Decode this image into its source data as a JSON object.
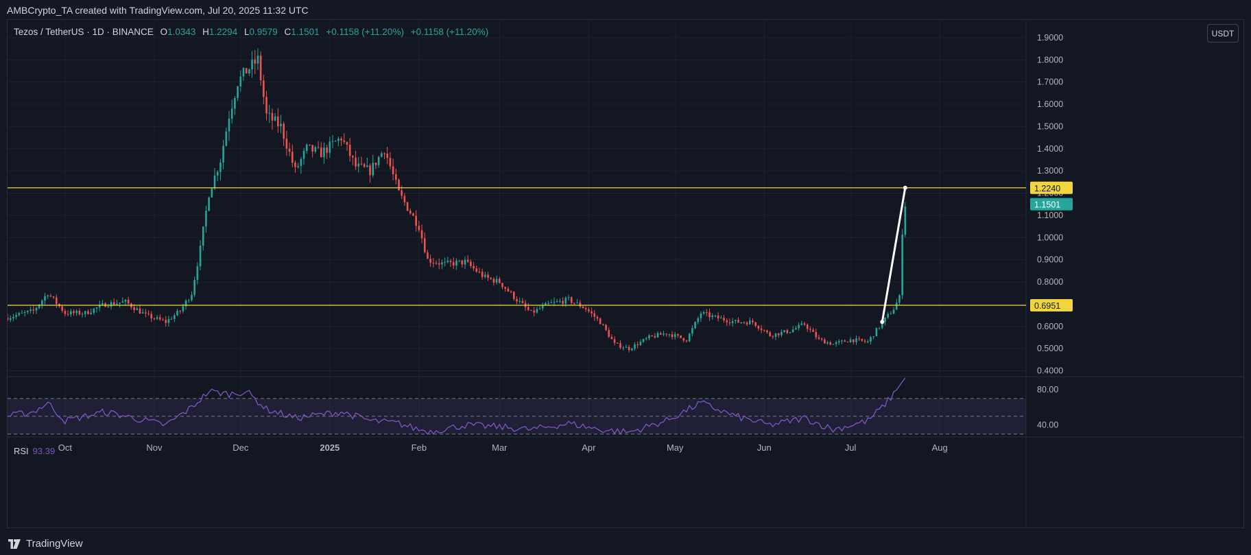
{
  "caption": "AMBCrypto_TA created with TradingView.com, Jul 20, 2025 11:32 UTC",
  "legend": {
    "symbol": "Tezos / TetherUS · 1D · BINANCE",
    "o_label": "O",
    "o_value": "1.0343",
    "h_label": "H",
    "h_value": "1.2294",
    "l_label": "L",
    "l_value": "0.9579",
    "c_label": "C",
    "c_value": "1.1501",
    "change": "+0.1158 (+11.20%)",
    "change2": "+0.1158 (+11.20%)"
  },
  "currency_button": "USDT",
  "rsi": {
    "label": "RSI",
    "value": "93.39"
  },
  "footer": {
    "brand": "TradingView",
    "logo_icon": "tradingview-logo-icon"
  },
  "colors": {
    "up": "#26a69a",
    "down": "#ef5350",
    "level": "#f0d63c",
    "rsi": "#7e57c2",
    "current_price_bg": "#26a69a",
    "level_label_bg": "#f0d63c"
  },
  "chart_data": [
    {
      "type": "candlestick",
      "title": "Tezos / TetherUS · 1D · BINANCE",
      "x_tick_labels": [
        "Oct",
        "Nov",
        "Dec",
        "2025",
        "Feb",
        "Mar",
        "Apr",
        "May",
        "Jun",
        "Jul",
        "Aug"
      ],
      "y_tick_labels": [
        "1.9000",
        "1.8000",
        "1.7000",
        "1.6000",
        "1.5000",
        "1.4000",
        "1.3000",
        "1.2000",
        "1.1000",
        "1.0000",
        "0.9000",
        "0.8000",
        "0.7000",
        "0.6000",
        "0.5000",
        "0.4000"
      ],
      "ylim": [
        0.38,
        1.98
      ],
      "x_range": [
        "2024-09-11",
        "2025-08-31"
      ],
      "horizontal_levels": [
        {
          "label": "1.2240",
          "value": 1.224
        },
        {
          "label": "0.6951",
          "value": 0.6951
        }
      ],
      "current_price": {
        "label": "1.1501",
        "value": 1.1501
      },
      "trendline": {
        "start": [
          "2025-07-12",
          0.62
        ],
        "end": [
          "2025-07-20",
          1.224
        ]
      },
      "price_path": [
        [
          "2024-09-11",
          0.64
        ],
        [
          "2024-09-20",
          0.67
        ],
        [
          "2024-09-25",
          0.75
        ],
        [
          "2024-10-01",
          0.66
        ],
        [
          "2024-10-08",
          0.66
        ],
        [
          "2024-10-15",
          0.7
        ],
        [
          "2024-10-22",
          0.71
        ],
        [
          "2024-10-29",
          0.65
        ],
        [
          "2024-11-05",
          0.62
        ],
        [
          "2024-11-10",
          0.67
        ],
        [
          "2024-11-14",
          0.75
        ],
        [
          "2024-11-17",
          0.95
        ],
        [
          "2024-11-20",
          1.2
        ],
        [
          "2024-11-24",
          1.35
        ],
        [
          "2024-11-27",
          1.55
        ],
        [
          "2024-11-30",
          1.7
        ],
        [
          "2024-12-03",
          1.75
        ],
        [
          "2024-12-07",
          1.8
        ],
        [
          "2024-12-10",
          1.55
        ],
        [
          "2024-12-15",
          1.5
        ],
        [
          "2024-12-20",
          1.3
        ],
        [
          "2024-12-24",
          1.4
        ],
        [
          "2024-12-29",
          1.38
        ],
        [
          "2025-01-05",
          1.45
        ],
        [
          "2025-01-10",
          1.32
        ],
        [
          "2025-01-15",
          1.3
        ],
        [
          "2025-01-20",
          1.4
        ],
        [
          "2025-01-25",
          1.2
        ],
        [
          "2025-02-01",
          1.05
        ],
        [
          "2025-02-04",
          0.9
        ],
        [
          "2025-02-10",
          0.88
        ],
        [
          "2025-02-17",
          0.89
        ],
        [
          "2025-02-24",
          0.82
        ],
        [
          "2025-03-01",
          0.8
        ],
        [
          "2025-03-07",
          0.72
        ],
        [
          "2025-03-12",
          0.66
        ],
        [
          "2025-03-18",
          0.7
        ],
        [
          "2025-03-25",
          0.72
        ],
        [
          "2025-03-31",
          0.68
        ],
        [
          "2025-04-05",
          0.62
        ],
        [
          "2025-04-10",
          0.52
        ],
        [
          "2025-04-15",
          0.5
        ],
        [
          "2025-04-22",
          0.55
        ],
        [
          "2025-04-28",
          0.57
        ],
        [
          "2025-05-05",
          0.54
        ],
        [
          "2025-05-10",
          0.66
        ],
        [
          "2025-05-15",
          0.64
        ],
        [
          "2025-05-22",
          0.62
        ],
        [
          "2025-05-28",
          0.62
        ],
        [
          "2025-06-03",
          0.56
        ],
        [
          "2025-06-10",
          0.58
        ],
        [
          "2025-06-15",
          0.61
        ],
        [
          "2025-06-20",
          0.54
        ],
        [
          "2025-06-25",
          0.52
        ],
        [
          "2025-07-01",
          0.54
        ],
        [
          "2025-07-07",
          0.53
        ],
        [
          "2025-07-11",
          0.6
        ],
        [
          "2025-07-16",
          0.68
        ],
        [
          "2025-07-18",
          0.73
        ],
        [
          "2025-07-19",
          1.03
        ],
        [
          "2025-07-20",
          1.15
        ]
      ]
    },
    {
      "type": "line",
      "title": "RSI",
      "y_tick_labels": [
        "80.00",
        "40.00"
      ],
      "ylim": [
        29,
        93
      ],
      "bands": [
        70,
        50,
        30
      ],
      "values_path": [
        [
          "2024-09-11",
          50
        ],
        [
          "2024-09-20",
          55
        ],
        [
          "2024-09-25",
          65
        ],
        [
          "2024-10-01",
          45
        ],
        [
          "2024-10-15",
          55
        ],
        [
          "2024-10-29",
          45
        ],
        [
          "2024-11-05",
          40
        ],
        [
          "2024-11-14",
          60
        ],
        [
          "2024-11-20",
          78
        ],
        [
          "2024-11-27",
          75
        ],
        [
          "2024-12-03",
          78
        ],
        [
          "2024-12-10",
          58
        ],
        [
          "2024-12-20",
          48
        ],
        [
          "2025-01-05",
          55
        ],
        [
          "2025-01-15",
          45
        ],
        [
          "2025-01-25",
          42
        ],
        [
          "2025-02-01",
          35
        ],
        [
          "2025-02-05",
          33
        ],
        [
          "2025-02-17",
          40
        ],
        [
          "2025-03-01",
          38
        ],
        [
          "2025-03-12",
          35
        ],
        [
          "2025-03-25",
          42
        ],
        [
          "2025-04-05",
          35
        ],
        [
          "2025-04-15",
          32
        ],
        [
          "2025-04-28",
          45
        ],
        [
          "2025-05-10",
          65
        ],
        [
          "2025-05-22",
          50
        ],
        [
          "2025-06-03",
          40
        ],
        [
          "2025-06-15",
          48
        ],
        [
          "2025-06-25",
          35
        ],
        [
          "2025-07-07",
          45
        ],
        [
          "2025-07-12",
          60
        ],
        [
          "2025-07-16",
          75
        ],
        [
          "2025-07-20",
          93.39
        ]
      ]
    }
  ]
}
